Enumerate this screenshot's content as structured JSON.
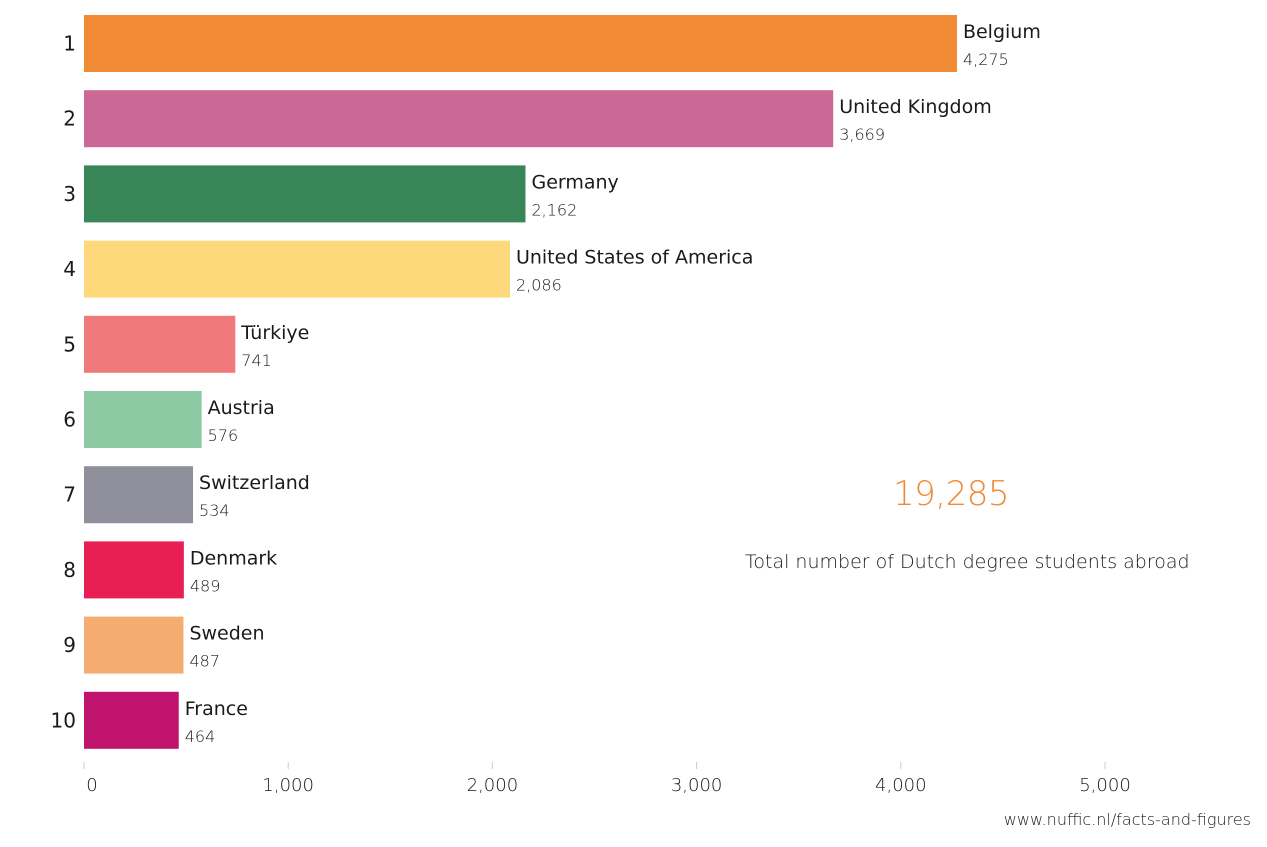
{
  "chart_data": {
    "type": "bar",
    "orientation": "horizontal",
    "categories": [
      "Belgium",
      "United Kingdom",
      "Germany",
      "United States of America",
      "Türkiye",
      "Austria",
      "Switzerland",
      "Denmark",
      "Sweden",
      "France"
    ],
    "ranks": [
      "1",
      "2",
      "3",
      "4",
      "5",
      "6",
      "7",
      "8",
      "9",
      "10"
    ],
    "values": [
      4275,
      3669,
      2162,
      2086,
      741,
      576,
      534,
      489,
      487,
      464
    ],
    "value_labels": [
      "4,275",
      "3,669",
      "2,162",
      "2,086",
      "741",
      "576",
      "534",
      "489",
      "487",
      "464"
    ],
    "colors": [
      "#f08a35",
      "#cb6896",
      "#388557",
      "#fdd97c",
      "#f07a7b",
      "#8dc9a2",
      "#90909c",
      "#e81f52",
      "#f5ac70",
      "#c0136e"
    ],
    "xlim": [
      0,
      5800
    ],
    "xticks": [
      0,
      1000,
      2000,
      3000,
      4000,
      5000
    ],
    "xtick_labels": [
      "0",
      "1,000",
      "2,000",
      "3,000",
      "4,000",
      "5,000"
    ],
    "grid": false,
    "legend": "none"
  },
  "total": {
    "value": "19,285",
    "label": "Total number of Dutch degree students abroad"
  },
  "source": "www.nuffic.nl/facts-and-figures"
}
